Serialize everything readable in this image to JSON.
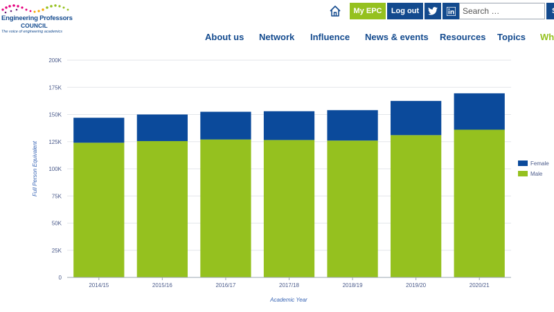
{
  "header": {
    "logo": {
      "title": "Engineering Professors",
      "subtitle": "COUNCIL",
      "tagline": "The voice of engineering academics"
    },
    "myepc_label": "My EPC",
    "logout_label": "Log out",
    "search": {
      "placeholder": "Search …",
      "value": "",
      "button_label": "S"
    },
    "colors": {
      "brand_blue": "#134a8e",
      "brand_green": "#95c11f"
    },
    "icons": [
      "home-icon",
      "twitter-icon",
      "linkedin-icon"
    ]
  },
  "nav": {
    "items": [
      {
        "label": "About us"
      },
      {
        "label": "Network"
      },
      {
        "label": "Influence"
      },
      {
        "label": "News & events"
      },
      {
        "label": "Resources"
      },
      {
        "label": "Topics"
      },
      {
        "label": "Why"
      }
    ]
  },
  "chart_data": {
    "type": "bar",
    "stacked": true,
    "categories": [
      "2014/15",
      "2015/16",
      "2016/17",
      "2017/18",
      "2018/19",
      "2019/20",
      "2020/21"
    ],
    "series": [
      {
        "name": "Male",
        "color": "#95c11f",
        "values": [
          124000,
          125500,
          127000,
          126500,
          126000,
          131000,
          136000
        ]
      },
      {
        "name": "Female",
        "color": "#0b4a9b",
        "values": [
          23000,
          24500,
          25500,
          26500,
          28000,
          31500,
          33500
        ]
      }
    ],
    "xlabel": "Academic Year",
    "ylabel": "Full Person Equivalent",
    "ylim": [
      0,
      200000
    ],
    "yticks": [
      "0",
      "25K",
      "50K",
      "75K",
      "100K",
      "125K",
      "150K",
      "175K",
      "200K"
    ],
    "grid": true,
    "legend_position": "right"
  }
}
